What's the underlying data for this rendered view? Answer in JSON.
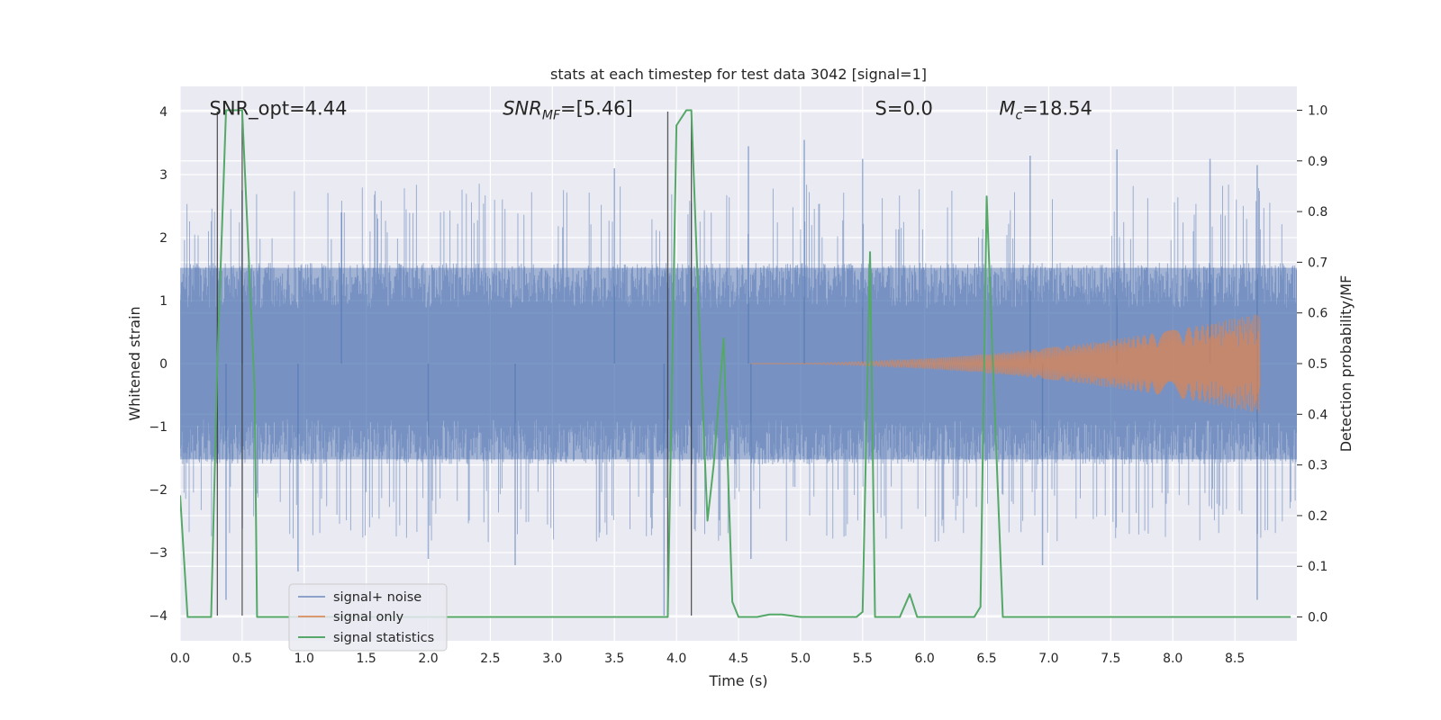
{
  "chart_data": {
    "type": "line",
    "title": "stats at each timestep for test data 3042 [signal=1]",
    "xlabel": "Time (s)",
    "ylabel": "Whitened strain",
    "y2label": "Detection probability/MF",
    "xlim": [
      0.0,
      9.0
    ],
    "ylim": [
      -4.4,
      4.4
    ],
    "y2lim": [
      -0.047,
      1.047
    ],
    "xticks": [
      "0.0",
      "0.5",
      "1.0",
      "1.5",
      "2.0",
      "2.5",
      "3.0",
      "3.5",
      "4.0",
      "4.5",
      "5.0",
      "5.5",
      "6.0",
      "6.5",
      "7.0",
      "7.5",
      "8.0",
      "8.5"
    ],
    "yticks": [
      "−4",
      "−3",
      "−2",
      "−1",
      "0",
      "1",
      "2",
      "3",
      "4"
    ],
    "y2ticks": [
      "0.0",
      "0.1",
      "0.2",
      "0.3",
      "0.4",
      "0.5",
      "0.6",
      "0.7",
      "0.8",
      "0.9",
      "1.0"
    ],
    "grid": true,
    "legend_position": "lower-left",
    "annotations": [
      {
        "id": "snr-opt",
        "text": "SNR_opt=4.44",
        "x": 0.2,
        "y": 4.05
      },
      {
        "id": "snr-mf",
        "text": "SNR_MF=[5.46]",
        "x": 2.6,
        "y": 4.05
      },
      {
        "id": "s-value",
        "text": "S=0.0",
        "x": 5.6,
        "y": 4.05
      },
      {
        "id": "mc-value",
        "text": "M_c=18.54",
        "x": 6.6,
        "y": 4.05
      }
    ],
    "vertical_lines": [
      0.3,
      0.5,
      3.93,
      4.12
    ],
    "series": [
      {
        "name": "signal+ noise",
        "color": "#4c72b0",
        "kind": "noise",
        "band_normal": [
          -1.6,
          1.6
        ],
        "band_spikes": [
          -2.4,
          2.6
        ],
        "outliers": [
          {
            "x": 0.37,
            "y": -3.75
          },
          {
            "x": 0.5,
            "y": 2.75
          },
          {
            "x": 0.95,
            "y": -3.3
          },
          {
            "x": 2.0,
            "y": -3.1
          },
          {
            "x": 2.7,
            "y": -3.2
          },
          {
            "x": 3.5,
            "y": 3.1
          },
          {
            "x": 3.9,
            "y": -4.0
          },
          {
            "x": 4.58,
            "y": 3.45
          },
          {
            "x": 5.03,
            "y": 3.55
          },
          {
            "x": 5.5,
            "y": 3.25
          },
          {
            "x": 6.85,
            "y": 3.3
          },
          {
            "x": 6.95,
            "y": -3.2
          },
          {
            "x": 7.55,
            "y": 3.4
          },
          {
            "x": 8.3,
            "y": 3.25
          },
          {
            "x": 8.68,
            "y": 3.15
          },
          {
            "x": 8.68,
            "y": -3.75
          },
          {
            "x": 4.6,
            "y": -3.1
          },
          {
            "x": 1.3,
            "y": 2.4
          }
        ]
      },
      {
        "name": "signal only",
        "color": "#dd8452",
        "kind": "chirp",
        "start_x": 4.6,
        "end_x": 8.7,
        "max_amplitude": 0.8
      },
      {
        "name": "signal statistics",
        "color": "#55a868",
        "axis": "right",
        "x": [
          0.0,
          0.06,
          0.1,
          0.25,
          0.3,
          0.37,
          0.45,
          0.5,
          0.6,
          0.62,
          0.75,
          1.0,
          2.3,
          3.8,
          3.93,
          4.0,
          4.08,
          4.12,
          4.18,
          4.25,
          4.3,
          4.38,
          4.45,
          4.5,
          4.65,
          4.75,
          4.85,
          5.0,
          5.2,
          5.45,
          5.5,
          5.56,
          5.6,
          5.7,
          5.8,
          5.88,
          5.94,
          6.0,
          6.2,
          6.4,
          6.45,
          6.5,
          6.55,
          6.63,
          6.7,
          7.0,
          8.0,
          8.95
        ],
        "values": [
          0.24,
          0.0,
          0.0,
          0.0,
          0.5,
          1.0,
          1.0,
          1.0,
          0.45,
          0.0,
          0.0,
          0.0,
          0.0,
          0.0,
          0.0,
          0.97,
          1.0,
          1.0,
          0.6,
          0.19,
          0.3,
          0.55,
          0.03,
          0.0,
          0.0,
          0.005,
          0.005,
          0.0,
          0.0,
          0.0,
          0.01,
          0.72,
          0.0,
          0.0,
          0.0,
          0.045,
          0.0,
          0.0,
          0.0,
          0.0,
          0.02,
          0.83,
          0.5,
          0.0,
          0.0,
          0.0,
          0.0,
          0.0
        ]
      }
    ]
  }
}
